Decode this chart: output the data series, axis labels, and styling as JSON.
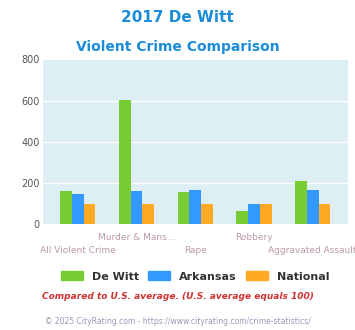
{
  "title_line1": "2017 De Witt",
  "title_line2": "Violent Crime Comparison",
  "title_color": "#1a8cd8",
  "categories": [
    "All Violent Crime",
    "Murder & Mans...",
    "Rape",
    "Robbery",
    "Aggravated Assault"
  ],
  "series": {
    "De Witt": [
      160,
      605,
      158,
      65,
      210
    ],
    "Arkansas": [
      148,
      160,
      168,
      100,
      168
    ],
    "National": [
      100,
      100,
      100,
      100,
      100
    ]
  },
  "colors": {
    "De Witt": "#77cc33",
    "Arkansas": "#3399ff",
    "National": "#ffaa22"
  },
  "ylim": [
    0,
    800
  ],
  "yticks": [
    0,
    200,
    400,
    600,
    800
  ],
  "fig_bg": "#ffffff",
  "plot_bg": "#ddeef5",
  "grid_color": "#ffffff",
  "footnote1": "Compared to U.S. average. (U.S. average equals 100)",
  "footnote2": "© 2025 CityRating.com - https://www.cityrating.com/crime-statistics/",
  "footnote1_color": "#cc3333",
  "footnote2_color": "#9999bb",
  "label_color": "#bb99aa",
  "legend_text_color": "#333333"
}
